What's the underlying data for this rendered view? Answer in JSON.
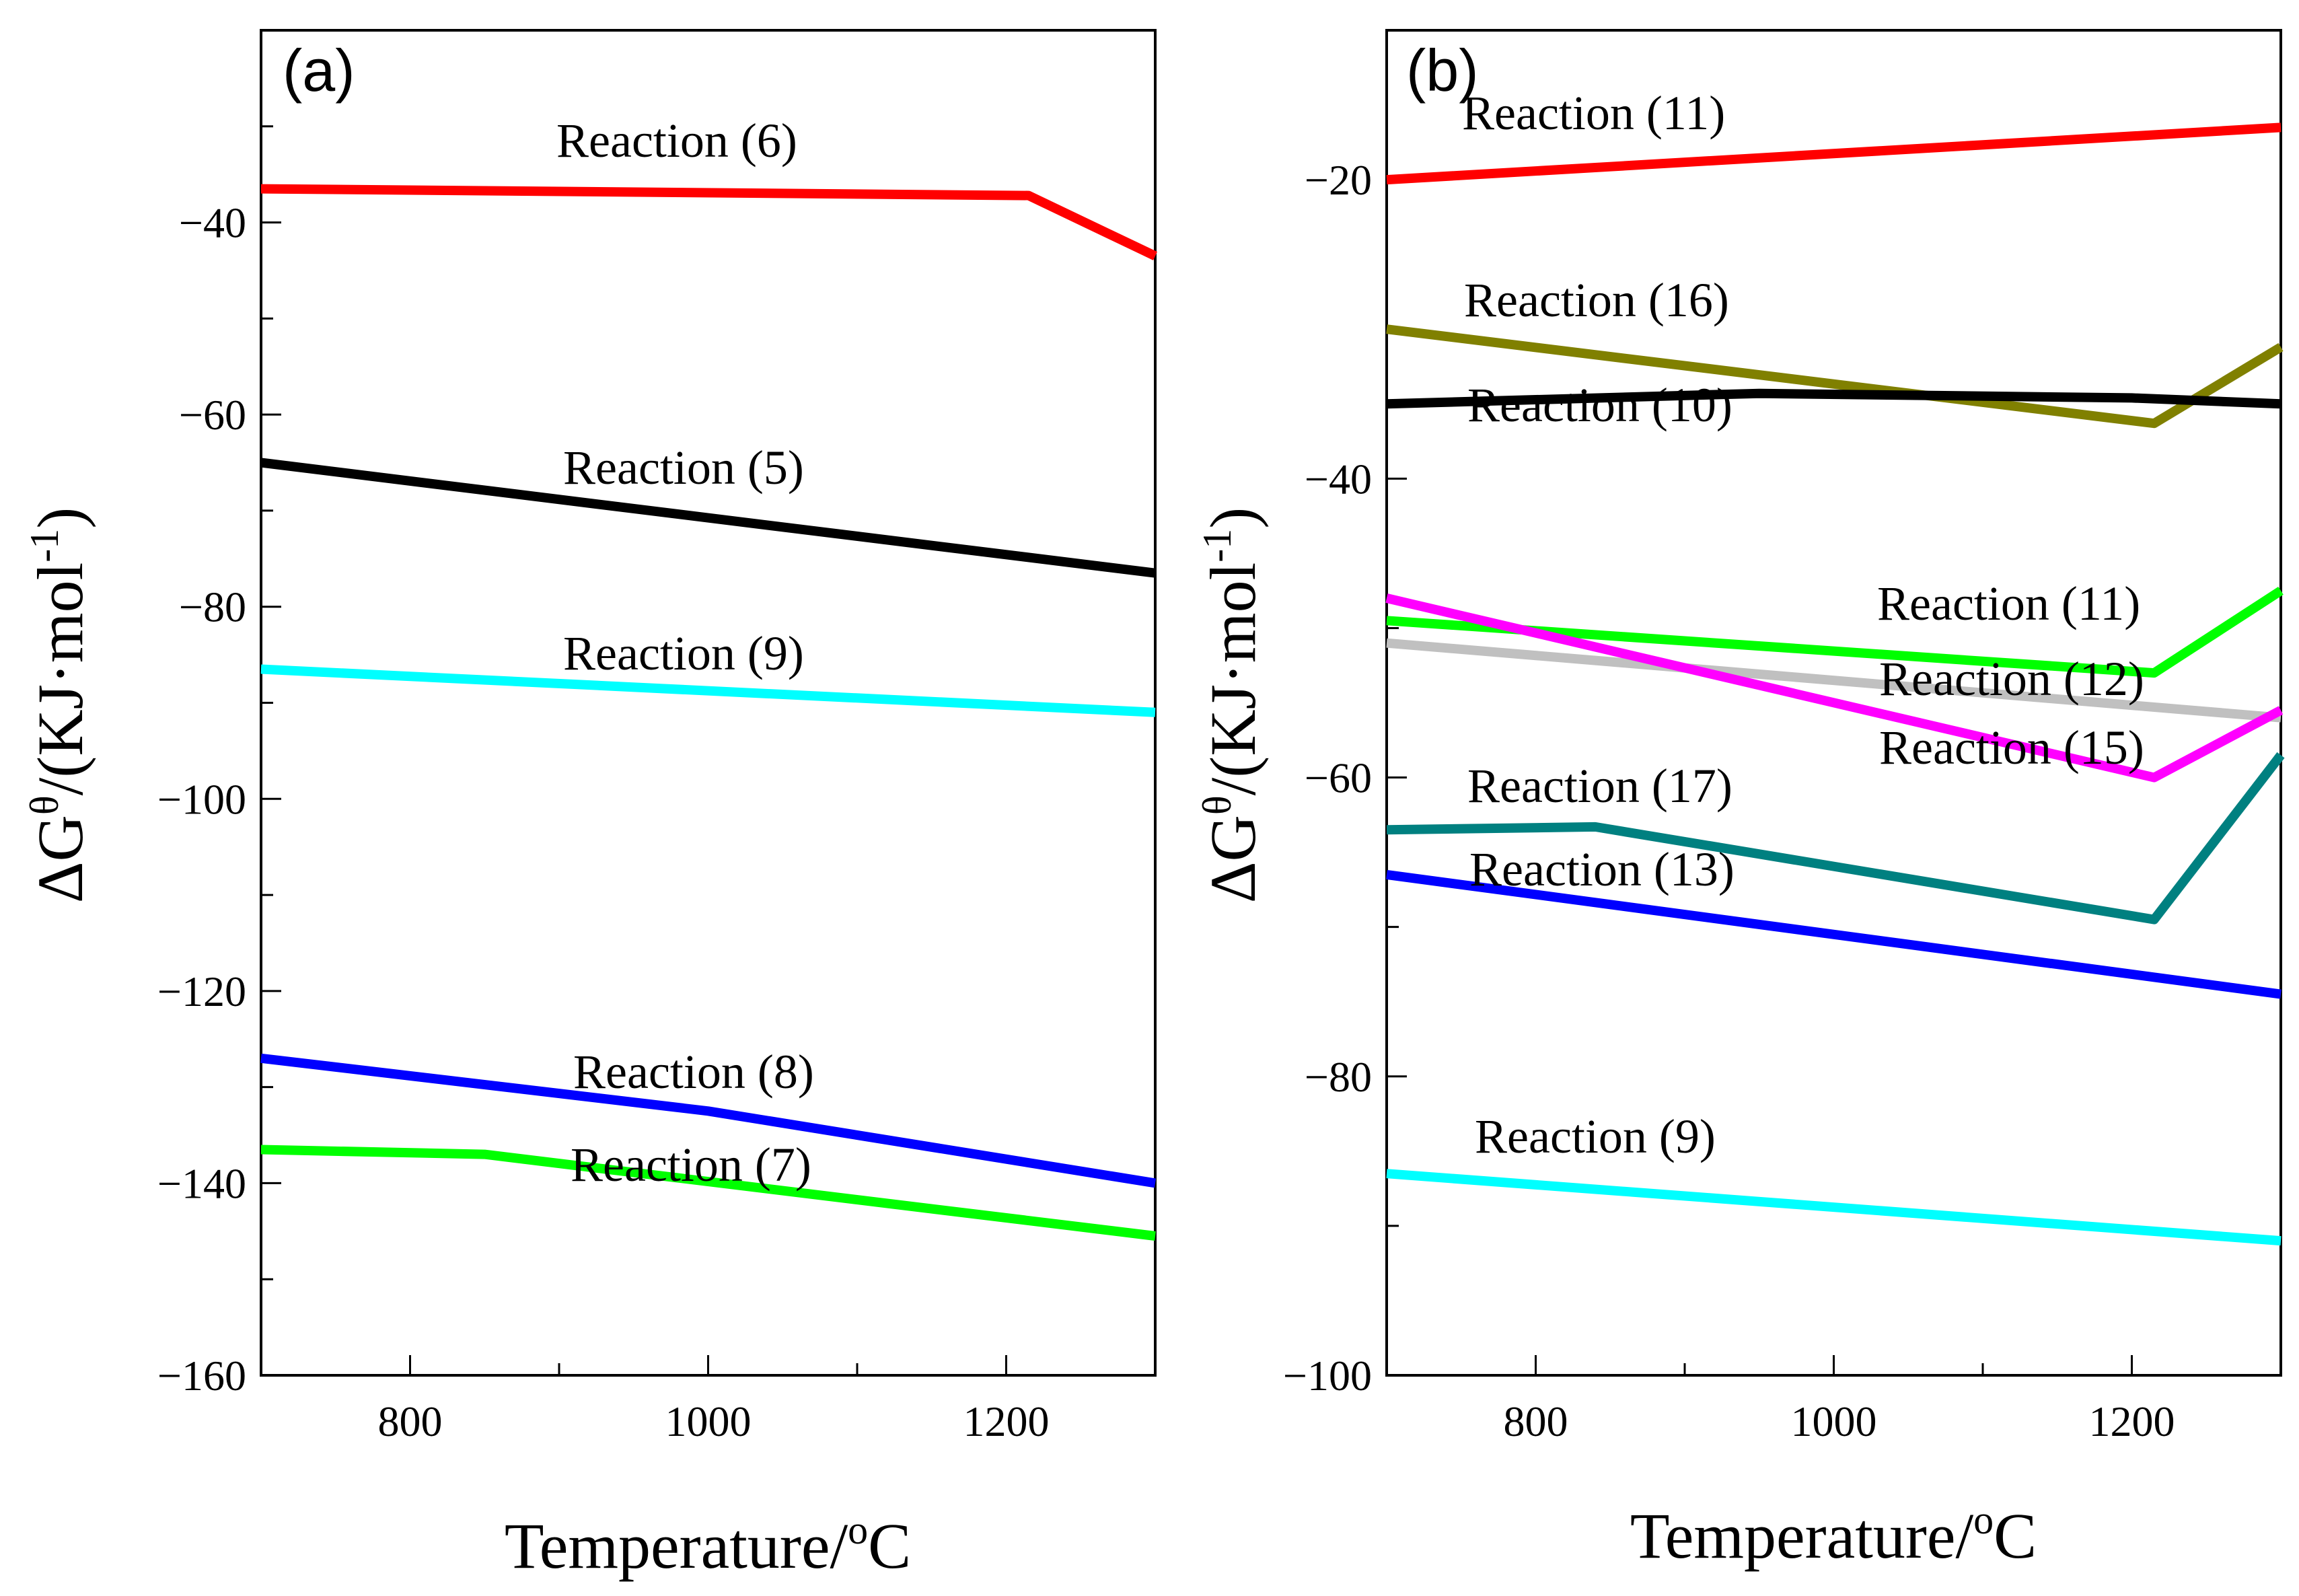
{
  "chart_data": [
    {
      "type": "line",
      "panel_label": "(a)",
      "xlabel": "Temperature/°C",
      "ylabel": "ΔGθ/(KJ·mol-1)",
      "xlim": [
        700,
        1300
      ],
      "ylim": [
        -160,
        -20
      ],
      "x_ticks": [
        800,
        1000,
        1200
      ],
      "y_ticks": [
        -160,
        -140,
        -120,
        -100,
        -80,
        -60,
        -40
      ],
      "grid": false,
      "series": [
        {
          "name": "Reaction (6)",
          "color": "#ff0000",
          "x": [
            700,
            1215,
            1300
          ],
          "y": [
            -36.5,
            -37.2,
            -43.5
          ]
        },
        {
          "name": "Reaction (5)",
          "color": "#000000",
          "x": [
            700,
            1300
          ],
          "y": [
            -65,
            -76.5
          ]
        },
        {
          "name": "Reaction (9)",
          "color": "#00ffff",
          "x": [
            700,
            1300
          ],
          "y": [
            -86.5,
            -91
          ]
        },
        {
          "name": "Reaction (8)",
          "color": "#0000ff",
          "x": [
            700,
            1000,
            1300
          ],
          "y": [
            -127,
            -132.5,
            -140
          ]
        },
        {
          "name": "Reaction (7)",
          "color": "#00ff00",
          "x": [
            700,
            850,
            1300
          ],
          "y": [
            -136.5,
            -137,
            -145.5
          ]
        }
      ]
    },
    {
      "type": "line",
      "panel_label": "(b)",
      "xlabel": "Temperature/°C",
      "ylabel": "ΔGθ/(KJ·mol-1)",
      "xlim": [
        700,
        1300
      ],
      "ylim": [
        -100,
        -10
      ],
      "x_ticks": [
        800,
        1000,
        1200
      ],
      "y_ticks": [
        -100,
        -80,
        -60,
        -40,
        -20
      ],
      "grid": false,
      "series": [
        {
          "name": "Reaction (11)",
          "color": "#ff0000",
          "x": [
            700,
            1300
          ],
          "y": [
            -20,
            -16.5
          ]
        },
        {
          "name": "Reaction (16)",
          "color": "#808000",
          "x": [
            700,
            1215,
            1300
          ],
          "y": [
            -30,
            -36.3,
            -31.2
          ]
        },
        {
          "name": "Reaction (10)",
          "color": "#000000",
          "x": [
            700,
            950,
            1200,
            1300
          ],
          "y": [
            -35,
            -34.3,
            -34.6,
            -35
          ]
        },
        {
          "name": "Reaction (11)",
          "color": "#00ff00",
          "x": [
            700,
            1215,
            1300
          ],
          "y": [
            -49.5,
            -53,
            -47.5
          ]
        },
        {
          "name": "Reaction (12)",
          "color": "#c0c0c0",
          "x": [
            700,
            1300
          ],
          "y": [
            -51,
            -56
          ]
        },
        {
          "name": "Reaction (15)",
          "color": "#ff00ff",
          "x": [
            700,
            1215,
            1300
          ],
          "y": [
            -48,
            -60,
            -55.5
          ]
        },
        {
          "name": "Reaction (17)",
          "color": "#008080",
          "x": [
            700,
            840,
            1215,
            1300
          ],
          "y": [
            -63.5,
            -63.3,
            -69.5,
            -58.5
          ]
        },
        {
          "name": "Reaction (13)",
          "color": "#0000ff",
          "x": [
            700,
            1300
          ],
          "y": [
            -66.5,
            -74.5
          ]
        },
        {
          "name": "Reaction (9)",
          "color": "#00ffff",
          "x": [
            700,
            1300
          ],
          "y": [
            -86.5,
            -91
          ]
        }
      ]
    }
  ]
}
